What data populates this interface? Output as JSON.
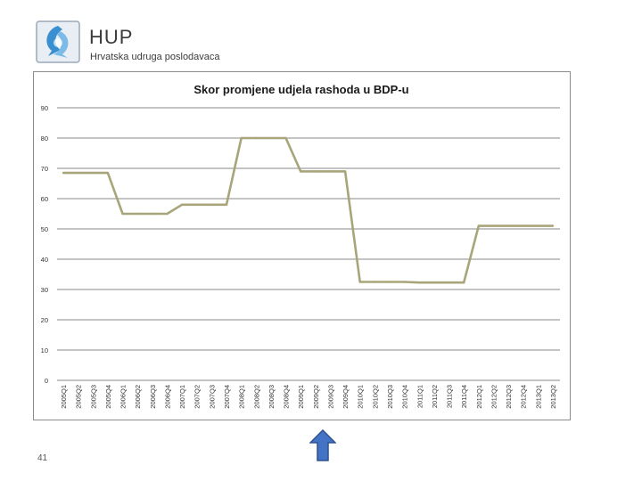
{
  "header": {
    "brand_name": "HUP",
    "brand_subtitle": "Hrvatska udruga poslodavaca"
  },
  "footer": {
    "page_number": "41"
  },
  "nav": {
    "up_icon": "up-arrow-icon"
  },
  "colors": {
    "series_line": "#a8a57a",
    "grid": "#888888",
    "frame": "#8c8c8c",
    "arrow_fill": "#4472c4",
    "arrow_stroke": "#2f528f"
  },
  "chart_data": {
    "type": "line",
    "title": "Skor promjene udjela rashoda u BDP-u",
    "xlabel": "",
    "ylabel": "",
    "ylim": [
      0,
      90
    ],
    "yticks": [
      0,
      10,
      20,
      30,
      40,
      50,
      60,
      70,
      80,
      90
    ],
    "grid": true,
    "legend": "none",
    "categories": [
      "2005Q1",
      "2005Q2",
      "2005Q3",
      "2005Q4",
      "2006Q1",
      "2006Q2",
      "2006Q3",
      "2006Q4",
      "2007Q1",
      "2007Q2",
      "2007Q3",
      "2007Q4",
      "2008Q1",
      "2008Q2",
      "2008Q3",
      "2008Q4",
      "2009Q1",
      "2009Q2",
      "2009Q3",
      "2009Q4",
      "2010Q1",
      "2010Q2",
      "2010Q3",
      "2010Q4",
      "2011Q1",
      "2011Q2",
      "2011Q3",
      "2011Q4",
      "2012Q1",
      "2012Q2",
      "2012Q3",
      "2012Q4",
      "2013Q1",
      "2013Q2"
    ],
    "series": [
      {
        "values": [
          68.5,
          68.5,
          68.5,
          68.5,
          55,
          55,
          55,
          55,
          58,
          58,
          58,
          58,
          80,
          80,
          80,
          80,
          69,
          69,
          69,
          69,
          32.5,
          32.5,
          32.5,
          32.5,
          32.3,
          32.3,
          32.3,
          32.3,
          51,
          51,
          51,
          51,
          51,
          51
        ]
      }
    ]
  }
}
